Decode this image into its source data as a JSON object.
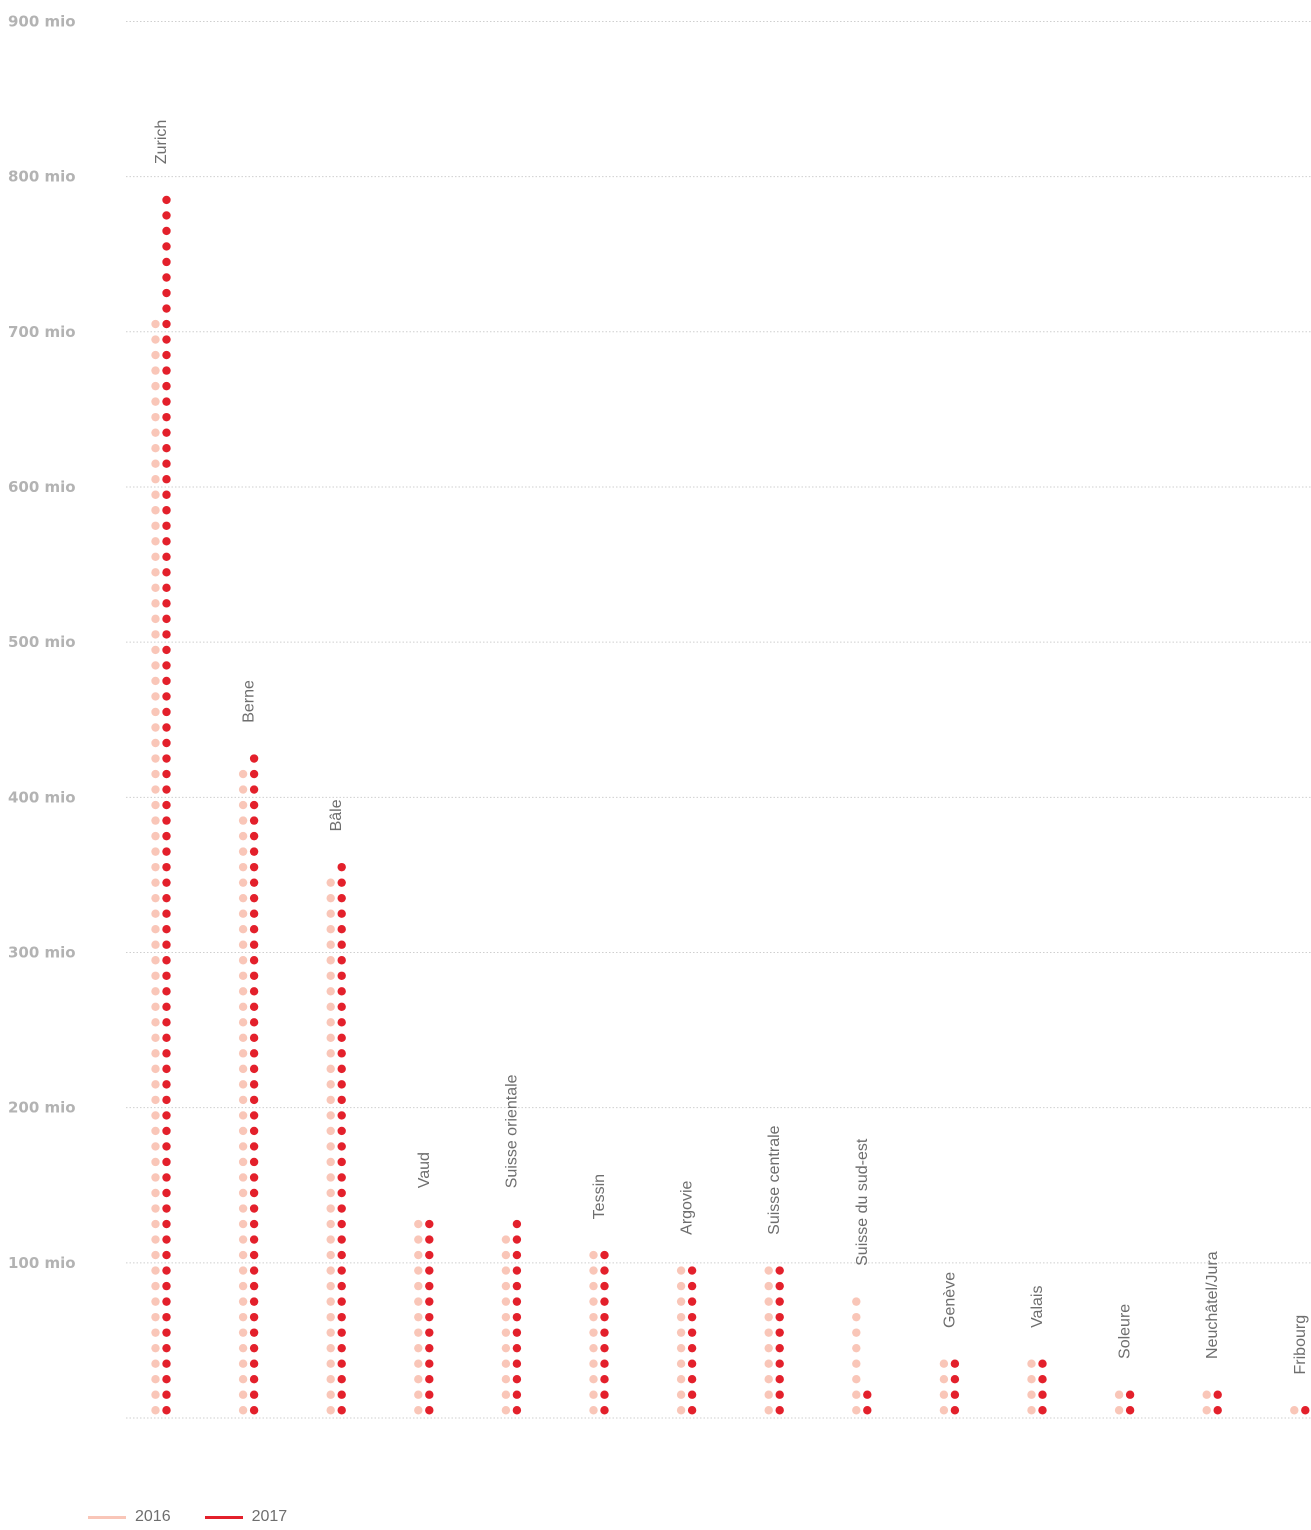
{
  "colors": {
    "s2016": "#f9c6b8",
    "s2017": "#e3202b",
    "grid": "#cfcfcf",
    "axis_text": "#b3b3b3",
    "label_text": "#6e6e6e"
  },
  "legend": {
    "items": [
      {
        "label": "2016",
        "color": "#f9c6b8"
      },
      {
        "label": "2017",
        "color": "#e3202b"
      }
    ]
  },
  "chart_data": {
    "type": "scatter",
    "ylim": [
      0,
      900
    ],
    "yticks": [
      {
        "value": 100,
        "label": "100 mio"
      },
      {
        "value": 200,
        "label": "200 mio"
      },
      {
        "value": 300,
        "label": "300 mio"
      },
      {
        "value": 400,
        "label": "400 mio"
      },
      {
        "value": 500,
        "label": "500 mio"
      },
      {
        "value": 600,
        "label": "600 mio"
      },
      {
        "value": 700,
        "label": "700 mio"
      },
      {
        "value": 800,
        "label": "800 mio"
      },
      {
        "value": 900,
        "label": "900 mio"
      }
    ],
    "dot_unit": 10,
    "categories": [
      "Zurich",
      "Berne",
      "Bâle",
      "Vaud",
      "Suisse orientale",
      "Tessin",
      "Argovie",
      "Suisse centrale",
      "Suisse du sud-est",
      "Genève",
      "Valais",
      "Soleure",
      "Neuchâtel/Jura",
      "Fribourg"
    ],
    "series": [
      {
        "name": "2016",
        "values": [
          710,
          420,
          350,
          130,
          120,
          110,
          100,
          100,
          80,
          40,
          40,
          20,
          20,
          10
        ]
      },
      {
        "name": "2017",
        "values": [
          790,
          430,
          360,
          130,
          130,
          110,
          100,
          100,
          20,
          40,
          40,
          20,
          20,
          10
        ]
      }
    ]
  }
}
